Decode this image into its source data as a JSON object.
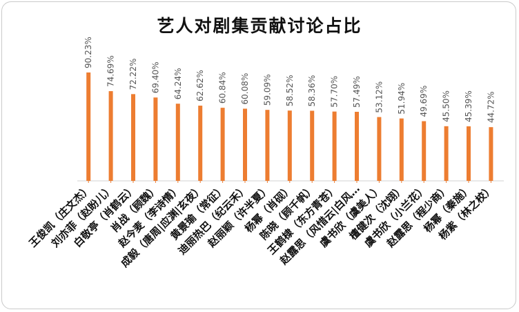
{
  "chart_data": {
    "type": "bar",
    "title": "艺人对剧集贡献讨论占比",
    "xlabel": "",
    "ylabel": "",
    "ylim": [
      0,
      100
    ],
    "grid": false,
    "bar_color": "#ED7D31",
    "categories": [
      "王俊凯（庄文杰）",
      "刘亦菲（赵盼儿）",
      "白敬亭（肖鹤云）",
      "肖战（顾魏）",
      "赵今麦（李诗情）",
      "成毅（唐周|应渊|玄夜）",
      "黄景瑜（常征）",
      "迪丽热巴（纪云禾）",
      "赵丽颖（许半夏）",
      "杨幂（肖砚）",
      "陈晓（顾千帆）",
      "王鹤棣（东方青苍）",
      "赵露思（风惜云|白风…",
      "虞书欣（虞美人）",
      "檀健次（沈翊）",
      "虞书欣（小兰花）",
      "赵露思（程少商）",
      "杨幂（秦施）",
      "杨紫（林之校）"
    ],
    "values": [
      90.23,
      74.69,
      72.22,
      69.4,
      64.24,
      62.62,
      60.84,
      60.08,
      59.09,
      58.52,
      58.36,
      57.7,
      57.49,
      53.12,
      51.94,
      49.69,
      45.5,
      45.39,
      44.72
    ],
    "value_labels": [
      "90.23%",
      "74.69%",
      "72.22%",
      "69.40%",
      "64.24%",
      "62.62%",
      "60.84%",
      "60.08%",
      "59.09%",
      "58.52%",
      "58.36%",
      "57.70%",
      "57.49%",
      "53.12%",
      "51.94%",
      "49.69%",
      "45.50%",
      "45.39%",
      "44.72%"
    ]
  }
}
